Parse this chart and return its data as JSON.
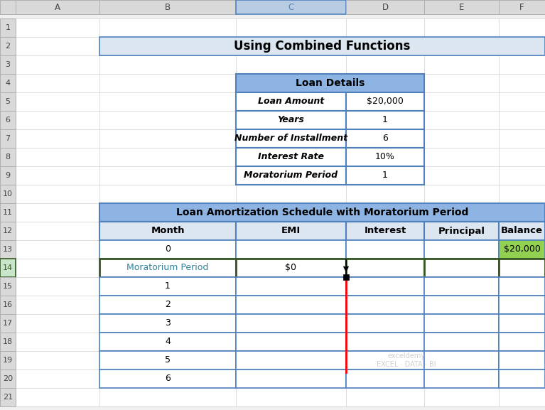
{
  "title_row2": "Using Combined Functions",
  "title_row2_bg": "#dce6f1",
  "title_row2_fontsize": 12,
  "loan_details_header": "Loan Details",
  "loan_details_header_bg": "#8db4e2",
  "loan_details_rows": [
    {
      "label": "Loan Amount",
      "value": "$20,000"
    },
    {
      "label": "Years",
      "value": "1"
    },
    {
      "label": "Number of Installment",
      "value": "6"
    },
    {
      "label": "Interest Rate",
      "value": "10%"
    },
    {
      "label": "Moratorium Period",
      "value": "1"
    }
  ],
  "loan_details_border": "#4f81bd",
  "schedule_title": "Loan Amortization Schedule with Moratorium Period",
  "schedule_title_bg": "#8db4e2",
  "schedule_headers": [
    "Month",
    "EMI",
    "Interest",
    "Principal",
    "Balance"
  ],
  "schedule_header_bg": "#dce6f1",
  "schedule_rows": [
    [
      "0",
      "",
      "",
      "",
      "$20,000"
    ],
    [
      "Moratorium Period",
      "$0",
      "",
      "",
      ""
    ],
    [
      "1",
      "",
      "",
      "",
      ""
    ],
    [
      "2",
      "",
      "",
      "",
      ""
    ],
    [
      "3",
      "",
      "",
      "",
      ""
    ],
    [
      "4",
      "",
      "",
      "",
      ""
    ],
    [
      "5",
      "",
      "",
      "",
      ""
    ],
    [
      "6",
      "",
      "",
      "",
      ""
    ]
  ],
  "balance_0_bg": "#92d050",
  "moratorium_row_border_color": "#375623",
  "schedule_border": "#4f81bd",
  "bg_color": "#f0f0f0",
  "col_strip_color": "#d9d9d9",
  "watermark_text": "exceldemy\nEXCEL · DATA · BI",
  "moratorium_text_color": "#31849b"
}
